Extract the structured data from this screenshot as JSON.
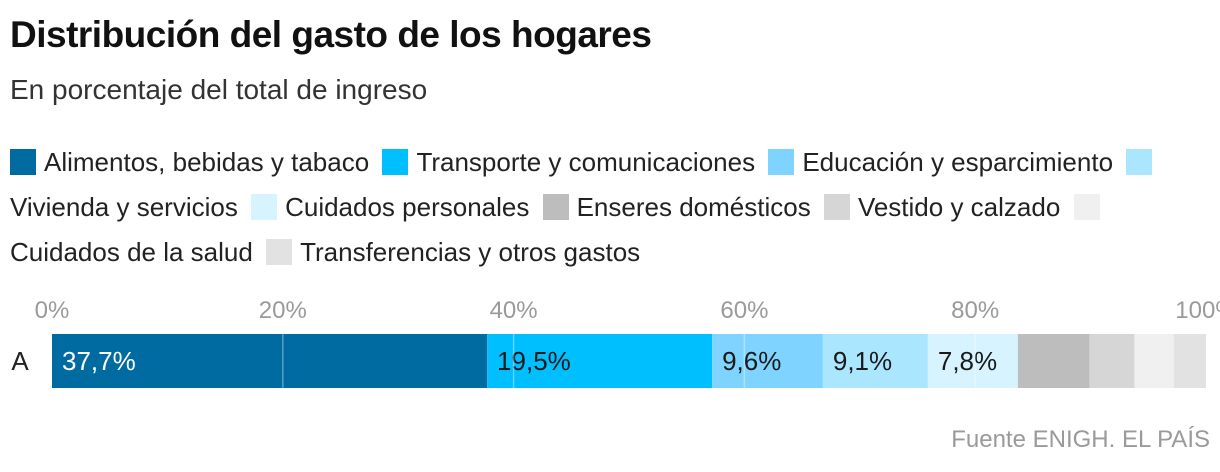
{
  "header": {
    "title": "Distribución del gasto de los hogares",
    "subtitle": "En porcentaje del total de ingreso"
  },
  "legend": {
    "items": [
      {
        "label": "Alimentos, bebidas y tabaco",
        "color": "#006ba1"
      },
      {
        "label": "Transporte y comunicaciones",
        "color": "#00bfff"
      },
      {
        "label": "Educación y esparcimiento",
        "color": "#7fd4ff"
      },
      {
        "label": "Vivienda y servicios",
        "color": "#abe6ff"
      },
      {
        "label": "Cuidados personales",
        "color": "#d6f3ff"
      },
      {
        "label": "Enseres domésticos",
        "color": "#bdbdbd"
      },
      {
        "label": "Vestido y calzado",
        "color": "#d6d6d6"
      },
      {
        "label": "Cuidados de la salud",
        "color": "#f0f0f0"
      },
      {
        "label": "Transferencias y otros gastos",
        "color": "#e2e2e2"
      }
    ]
  },
  "chart_data": {
    "type": "bar",
    "orientation": "horizontal-stacked",
    "categories": [
      "A"
    ],
    "xlim": [
      0,
      100
    ],
    "x_ticks": [
      "0%",
      "20%",
      "40%",
      "60%",
      "80%",
      "100%"
    ],
    "grid": true,
    "legend_placement": "top",
    "series": [
      {
        "name": "Alimentos, bebidas y tabaco",
        "values": [
          37.7
        ],
        "label": "37,7%",
        "color": "#006ba1"
      },
      {
        "name": "Transporte y comunicaciones",
        "values": [
          19.5
        ],
        "label": "19,5%",
        "color": "#00bfff"
      },
      {
        "name": "Educación y esparcimiento",
        "values": [
          9.6
        ],
        "label": "9,6%",
        "color": "#7fd4ff"
      },
      {
        "name": "Vivienda y servicios",
        "values": [
          9.1
        ],
        "label": "9,1%",
        "color": "#abe6ff"
      },
      {
        "name": "Cuidados personales",
        "values": [
          7.8
        ],
        "label": "7,8%",
        "color": "#d6f3ff"
      },
      {
        "name": "Enseres domésticos",
        "values": [
          6.2
        ],
        "label": "",
        "color": "#bdbdbd"
      },
      {
        "name": "Vestido y calzado",
        "values": [
          3.9
        ],
        "label": "",
        "color": "#d6d6d6"
      },
      {
        "name": "Cuidados de la salud",
        "values": [
          3.4
        ],
        "label": "",
        "color": "#f0f0f0"
      },
      {
        "name": "Transferencias y otros gastos",
        "values": [
          2.8
        ],
        "label": "",
        "color": "#e2e2e2"
      }
    ]
  },
  "source": "Fuente ENIGH. EL PAÍS"
}
